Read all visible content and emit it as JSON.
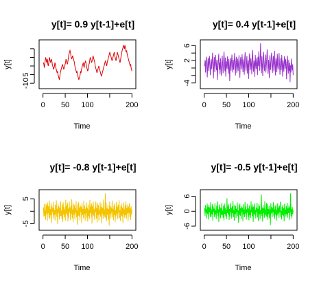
{
  "chart_data": [
    {
      "type": "line",
      "title": "y[t]= 0.9 y[t-1]+e[t]",
      "xlabel": "Time",
      "ylabel": "y[t]",
      "xticks": [
        0,
        50,
        100,
        150,
        200
      ],
      "xtick_labels": [
        "0",
        "50",
        "100",
        "",
        "200"
      ],
      "yticks": [
        -10,
        -5,
        0,
        5,
        10
      ],
      "ytick_labels": [
        "-10",
        "",
        "5"
      ],
      "ytick_labeled_values": [
        -10,
        -5,
        5
      ],
      "xlim": [
        0,
        200
      ],
      "ylim": [
        -12,
        14
      ],
      "color": "#dd0000",
      "series": [
        {
          "x_start": 1,
          "values": [
            2,
            1,
            -1,
            1,
            3,
            5,
            4,
            2,
            3,
            4,
            1,
            0,
            2,
            4,
            5,
            3,
            2,
            3,
            4,
            3,
            1,
            0,
            -1,
            -2,
            -1,
            0,
            2,
            1,
            -1,
            -2,
            -3,
            -4,
            -3,
            -5,
            -6,
            -7,
            -8,
            -6,
            -4,
            -3,
            -2,
            -1,
            0,
            1,
            0,
            -1,
            -2,
            -1,
            0,
            1,
            2,
            4,
            3,
            2,
            1,
            2,
            4,
            6,
            7,
            8,
            9,
            8,
            6,
            5,
            4,
            5,
            6,
            5,
            4,
            3,
            2,
            0,
            -1,
            -2,
            -3,
            -4,
            -3,
            -5,
            -6,
            -7,
            -8,
            -7,
            -6,
            -5,
            -3,
            -4,
            -2,
            -1,
            0,
            1,
            2,
            0,
            -1,
            1,
            2,
            3,
            2,
            0,
            -1,
            -2,
            -3,
            -2,
            0,
            1,
            2,
            4,
            5,
            4,
            3,
            2,
            3,
            4,
            6,
            5,
            4,
            3,
            2,
            0,
            -1,
            -2,
            -3,
            -4,
            -3,
            -2,
            -1,
            0,
            -1,
            -2,
            -3,
            -4,
            -5,
            -6,
            -5,
            -4,
            -3,
            -2,
            -1,
            0,
            1,
            2,
            3,
            2,
            1,
            0,
            2,
            3,
            4,
            5,
            6,
            7,
            8,
            7,
            6,
            5,
            4,
            3,
            4,
            5,
            6,
            7,
            8,
            6,
            5,
            4,
            3,
            5,
            6,
            8,
            7,
            6,
            5,
            4,
            3,
            2,
            3,
            5,
            6,
            8,
            9,
            10,
            11,
            12,
            11,
            10,
            12,
            11,
            9,
            8,
            9,
            7,
            6,
            5,
            4,
            3,
            2,
            1,
            0,
            1,
            -1,
            -2,
            -3
          ]
        }
      ]
    },
    {
      "type": "line",
      "title": "y[t]= 0.4 y[t-1]+e[t]",
      "xlabel": "Time",
      "ylabel": "y[t]",
      "xticks": [
        0,
        50,
        100,
        150,
        200
      ],
      "xtick_labels": [
        "0",
        "50",
        "100",
        "",
        "200"
      ],
      "yticks": [
        -4,
        -2,
        0,
        2,
        4,
        6
      ],
      "ytick_labels": [
        "-4",
        "",
        "2",
        "6"
      ],
      "ytick_labeled_values": [
        -4,
        2,
        6
      ],
      "xlim": [
        0,
        200
      ],
      "ylim": [
        -5,
        7
      ],
      "color": "#9933cc",
      "series": [
        {
          "x_start": 1,
          "values": [
            0.5,
            2.1,
            -1.2,
            1.8,
            3.0,
            0.2,
            -2.5,
            1.0,
            2.7,
            -0.8,
            1.5,
            3.2,
            0.4,
            -1.9,
            0.9,
            2.4,
            -0.3,
            1.7,
            4.1,
            0.6,
            -2.8,
            1.3,
            2.9,
            -1.1,
            0.8,
            3.5,
            1.2,
            -0.6,
            2.2,
            -3.2,
            0.1,
            1.9,
            3.8,
            -0.4,
            1.4,
            -1.7,
            2.6,
            0.3,
            -2.1,
            1.1,
            3.3,
            0.7,
            -1.4,
            2.0,
            4.4,
            1.6,
            -0.9,
            2.8,
            -2.3,
            0.5,
            1.8,
            -0.2,
            3.1,
            1.0,
            -1.6,
            2.4,
            0.2,
            -3.5,
            1.3,
            2.7,
            -0.7,
            1.9,
            3.6,
            0.4,
            -1.2,
            2.2,
            -0.5,
            1.5,
            4.0,
            0.9,
            -2.0,
            1.7,
            3.0,
            -1.3,
            0.6,
            2.5,
            -0.8,
            1.2,
            3.4,
            0.1,
            -2.6,
            1.8,
            2.9,
            -0.4,
            1.0,
            3.7,
            1.5,
            -1.1,
            2.3,
            0.6,
            -1.8,
            2.8,
            4.2,
            0.3,
            -0.9,
            1.6,
            3.2,
            -1.5,
            0.8,
            2.1,
            -2.9,
            1.4,
            3.9,
            0.7,
            -0.6,
            2.6,
            1.1,
            -1.7,
            3.3,
            4.8,
            0.2,
            -1.0,
            2.0,
            1.3,
            -2.4,
            3.5,
            0.9,
            -0.3,
            2.7,
            1.6,
            -1.9,
            3.0,
            0.5,
            4.5,
            1.8,
            -0.7,
            2.4,
            6.6,
            1.2,
            -1.4,
            3.1,
            0.8,
            -2.2,
            2.9,
            4.3,
            0.4,
            -0.8,
            1.7,
            3.6,
            -1.2,
            0.6,
            2.5,
            5.0,
            1.4,
            -1.6,
            2.2,
            0.3,
            -2.7,
            3.4,
            1.0,
            -0.5,
            2.8,
            4.1,
            0.9,
            -1.3,
            1.9,
            3.2,
            -0.9,
            1.1,
            4.6,
            0.2,
            -2.0,
            2.6,
            1.5,
            -1.1,
            3.8,
            0.7,
            -0.4,
            2.3,
            4.0,
            1.2,
            -1.8,
            0.8,
            2.7,
            -0.6,
            3.5,
            1.4,
            -2.3,
            2.0,
            0.5,
            -1.0,
            3.1,
            1.8,
            -0.2,
            2.4,
            0.9,
            -3.0,
            1.6,
            3.3,
            0.1,
            -1.5,
            2.2,
            -0.8,
            1.3,
            -3.8,
            0.7,
            -1.2,
            2.5,
            0.4,
            -0.6,
            1.0,
            -1.9
          ]
        }
      ]
    },
    {
      "type": "line",
      "title": "y[t]= -0.8 y[t-1]+e[t]",
      "xlabel": "Time",
      "ylabel": "y[t]",
      "xticks": [
        0,
        50,
        100,
        150,
        200
      ],
      "xtick_labels": [
        "0",
        "50",
        "100",
        "",
        "200"
      ],
      "yticks": [
        -5,
        0,
        5
      ],
      "ytick_labels": [
        "-5",
        "",
        "5"
      ],
      "ytick_labeled_values": [
        -5,
        5
      ],
      "xlim": [
        0,
        200
      ],
      "ylim": [
        -7,
        8
      ],
      "color": "#f5c400",
      "series": [
        {
          "x_start": 1,
          "values": [
            1.5,
            -2.2,
            3.0,
            -1.8,
            0.6,
            -3.4,
            2.9,
            -1.1,
            2.4,
            -4.0,
            3.5,
            -0.8,
            1.9,
            -2.7,
            4.2,
            -3.1,
            0.9,
            -1.5,
            3.3,
            -4.6,
            2.1,
            -0.4,
            1.2,
            -2.9,
            3.8,
            -1.6,
            0.5,
            -3.7,
            2.6,
            -1.2,
            4.4,
            -2.3,
            1.0,
            -5.1,
            3.1,
            -0.7,
            2.0,
            -3.3,
            1.4,
            -2.0,
            4.0,
            -1.9,
            0.3,
            -3.0,
            2.7,
            -4.3,
            3.6,
            -1.3,
            1.7,
            -2.5,
            0.8,
            -3.8,
            4.6,
            -0.9,
            2.2,
            -1.7,
            3.4,
            -4.1,
            1.1,
            -2.6,
            3.9,
            -0.5,
            1.6,
            -3.5,
            2.3,
            -1.0,
            4.8,
            -2.8,
            0.7,
            -4.4,
            3.0,
            -1.4,
            2.5,
            -3.2,
            1.3,
            -0.6,
            4.1,
            -2.4,
            0.4,
            -5.4,
            2.8,
            -1.8,
            3.7,
            -2.1,
            1.5,
            -3.6,
            2.4,
            -0.3,
            1.8,
            -4.7,
            3.2,
            -1.5,
            0.9,
            -2.8,
            4.3,
            -1.1,
            2.1,
            -3.9,
            1.0,
            -0.8,
            3.5,
            -2.6,
            1.4,
            -4.2,
            2.7,
            -1.9,
            0.6,
            -3.1,
            4.5,
            -0.7,
            1.9,
            -2.3,
            3.1,
            -5.0,
            2.2,
            -1.3,
            3.8,
            -2.0,
            0.8,
            -3.4,
            1.6,
            -0.4,
            4.0,
            -2.9,
            1.2,
            -4.5,
            3.3,
            -1.6,
            2.6,
            -3.7,
            0.5,
            -1.2,
            3.6,
            -2.2,
            1.7,
            -4.9,
            2.9,
            -0.9,
            1.3,
            -3.0,
            4.7,
            -1.7,
            0.7,
            -2.5,
            7.2,
            -2.7,
            3.4,
            -4.0,
            1.1,
            -1.4,
            2.5,
            -3.3,
            0.9,
            -5.8,
            3.8,
            -1.0,
            2.0,
            -2.9,
            1.5,
            -0.6,
            4.2,
            -2.4,
            1.0,
            -3.6,
            2.3,
            -1.5,
            3.2,
            -4.3,
            0.6,
            -2.0,
            3.7,
            -1.1,
            1.8,
            -3.2,
            2.6,
            -0.5,
            4.4,
            -2.7,
            0.3,
            -3.9,
            2.1,
            -1.8,
            3.0,
            -2.2,
            1.4,
            -4.8,
            3.5,
            -1.2,
            0.8,
            -2.6,
            2.4,
            -1.6,
            3.9,
            -3.1,
            1.3,
            -0.9,
            2.7,
            -4.1,
            1.9,
            -0.7,
            3.2,
            -2.3,
            1.1,
            -3.5,
            2.0,
            -1.4,
            0.6
          ]
        }
      ]
    },
    {
      "type": "line",
      "title": "y[t]= -0.5 y[t-1]+e[t]",
      "xlabel": "Time",
      "ylabel": "y[t]",
      "xticks": [
        0,
        50,
        100,
        150,
        200
      ],
      "xtick_labels": [
        "0",
        "50",
        "100",
        "",
        "200"
      ],
      "yticks": [
        -6,
        0,
        6
      ],
      "ytick_labels": [
        "-6",
        "0",
        "6"
      ],
      "ytick_labeled_values": [
        -6,
        0,
        6
      ],
      "xlim": [
        0,
        200
      ],
      "ylim": [
        -7,
        8
      ],
      "color": "#00ee00",
      "series": [
        {
          "x_start": 1,
          "values": [
            1.2,
            -1.8,
            2.5,
            -0.6,
            0.9,
            -2.9,
            3.1,
            -1.2,
            1.8,
            -3.3,
            2.6,
            -0.4,
            1.5,
            -2.2,
            3.6,
            -2.5,
            0.7,
            -1.1,
            2.8,
            -3.8,
            1.9,
            -0.2,
            1.0,
            -2.4,
            3.2,
            -1.3,
            0.4,
            -3.1,
            2.2,
            -0.8,
            3.9,
            -1.9,
            0.8,
            -4.3,
            2.7,
            -0.5,
            1.7,
            -2.8,
            1.2,
            -1.6,
            3.4,
            -1.5,
            0.2,
            -2.6,
            2.3,
            -3.7,
            3.1,
            -1.0,
            1.4,
            -2.1,
            0.6,
            -3.2,
            5.2,
            -0.7,
            1.9,
            -1.4,
            2.9,
            -3.5,
            0.9,
            -2.2,
            3.3,
            -0.3,
            1.3,
            -3.0,
            2.0,
            -0.8,
            4.1,
            -2.4,
            0.5,
            -3.8,
            2.6,
            -1.1,
            2.1,
            -2.7,
            1.0,
            -0.4,
            3.5,
            -2.0,
            0.3,
            -4.7,
            2.4,
            -1.5,
            3.1,
            -1.8,
            1.2,
            -3.1,
            2.0,
            -0.2,
            1.5,
            -4.0,
            2.8,
            -1.2,
            0.7,
            -2.4,
            3.7,
            -0.9,
            1.8,
            -3.4,
            0.8,
            -0.6,
            3.0,
            -2.2,
            1.1,
            -3.6,
            2.3,
            -1.6,
            0.5,
            -2.7,
            3.9,
            -0.5,
            1.6,
            -2.0,
            2.7,
            -4.3,
            1.9,
            -1.0,
            3.2,
            -1.7,
            0.6,
            -2.9,
            1.4,
            -0.3,
            3.4,
            -2.5,
            1.0,
            -3.9,
            2.8,
            -1.3,
            2.2,
            -3.2,
            0.4,
            -1.0,
            6.8,
            -1.9,
            1.5,
            -4.2,
            2.5,
            -0.7,
            1.1,
            -2.6,
            4.0,
            -1.4,
            0.6,
            -2.1,
            3.3,
            -2.3,
            2.9,
            -3.4,
            0.9,
            -1.2,
            2.1,
            -2.8,
            0.7,
            -5.6,
            3.2,
            -0.8,
            1.7,
            -2.5,
            1.3,
            -0.5,
            3.6,
            -2.0,
            0.8,
            -3.1,
            2.0,
            -1.3,
            2.7,
            -3.7,
            0.5,
            -1.7,
            3.2,
            -0.9,
            1.5,
            -2.7,
            2.2,
            -0.4,
            3.8,
            -2.3,
            0.2,
            -3.3,
            1.8,
            -1.5,
            2.6,
            -1.9,
            1.2,
            -4.1,
            3.0,
            -1.0,
            0.7,
            -2.2,
            2.0,
            -1.3,
            3.4,
            -2.6,
            1.1,
            -0.7,
            2.3,
            -3.5,
            1.6,
            -0.6,
            7.2,
            -1.9,
            0.9,
            -3.0,
            1.7,
            -1.2,
            0.5
          ]
        }
      ]
    }
  ]
}
